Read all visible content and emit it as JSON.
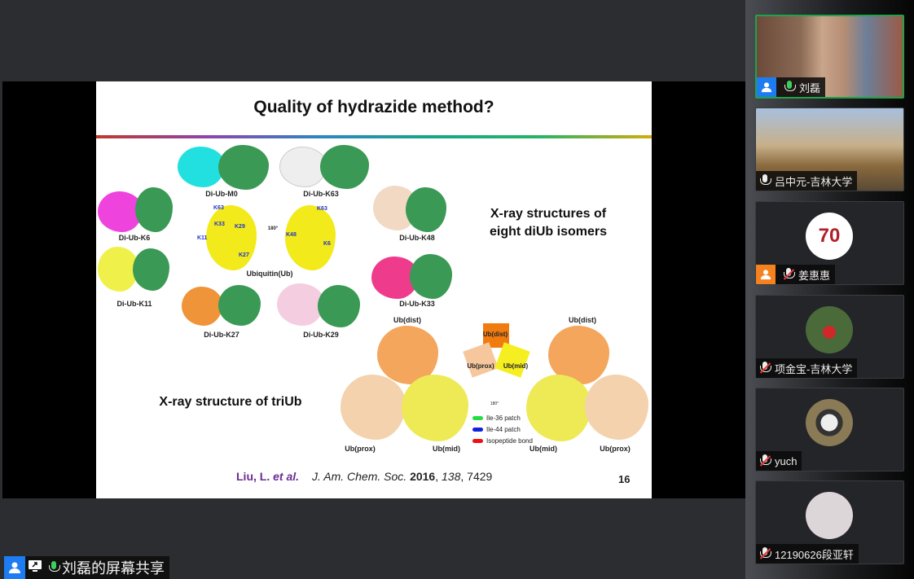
{
  "slide": {
    "title": "Quality of hydrazide method?",
    "diub_labels": [
      "Di-Ub-M0",
      "Di-Ub-K63",
      "Di-Ub-K6",
      "Di-Ub-K48",
      "Di-Ub-K11",
      "Di-Ub-K33",
      "Di-Ub-K27",
      "Di-Ub-K29"
    ],
    "ubiquitin_label": "Ubiquitin(Ub)",
    "rotation_label": "180°",
    "rotation_label_small": "180°",
    "lysines_left": [
      "K63",
      "K33",
      "K29",
      "K11",
      "K27"
    ],
    "lysines_right": [
      "K63",
      "K48",
      "K6"
    ],
    "heading_diub": "X-ray structures of eight diUb isomers",
    "heading_triub": "X-ray structure of triUb",
    "triub_labels": {
      "dist": "Ub(dist)",
      "prox": "Ub(prox)",
      "mid": "Ub(mid)"
    },
    "legend": [
      {
        "label": "Ile-36 patch",
        "color": "#22dd44"
      },
      {
        "label": "Ile-44 patch",
        "color": "#1122dd"
      },
      {
        "label": "Isopeptide bond",
        "color": "#ee1111"
      }
    ],
    "citation": {
      "authors": "Liu, L. ",
      "etal": "et al.",
      "journal": "J. Am. Chem. Soc. ",
      "year": "2016",
      "volume": "138",
      "pages": ", 7429"
    },
    "page_number": "16"
  },
  "participants": [
    {
      "name": "刘磊",
      "mic": "active",
      "video": true,
      "host_icon": true
    },
    {
      "name": "吕中元-吉林大学",
      "mic": "on",
      "video": true
    },
    {
      "name": "姜惠惠",
      "mic": "muted",
      "avatar": "70-anniversary-logo",
      "host_icon": true
    },
    {
      "name": "项金宝-吉林大学",
      "mic": "muted",
      "avatar": "child-photo"
    },
    {
      "name": "yuch",
      "mic": "muted",
      "avatar": "husky-photo"
    },
    {
      "name": "12190626段亚轩",
      "mic": "muted",
      "avatar": "sketch-photo"
    }
  ],
  "share_label": "刘磊的屏幕共享",
  "colors": {
    "active_speaker": "#21a34a",
    "host_blue": "#1e7cf2",
    "host_orange": "#f5821f"
  }
}
